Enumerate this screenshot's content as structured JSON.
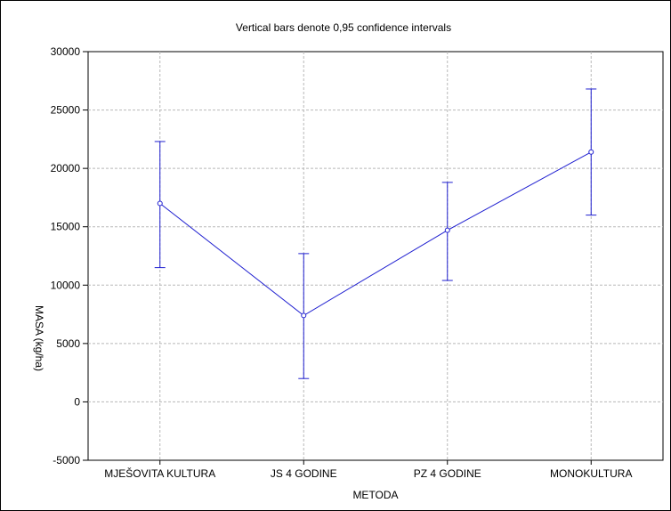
{
  "chart_data": {
    "type": "line",
    "title": "Vertical bars denote 0,95 confidence intervals",
    "xlabel": "METODA",
    "ylabel": "MASA (kg/ha)",
    "categories": [
      "MJEŠOVITA KULTURA",
      "JS 4 GODINE",
      "PZ 4 GODINE",
      "MONOKULTURA"
    ],
    "series": [
      {
        "values": [
          17000,
          7400,
          14700,
          21400
        ],
        "ci_low": [
          11500,
          2000,
          10400,
          16000
        ],
        "ci_high": [
          22300,
          12700,
          18800,
          26800
        ]
      }
    ],
    "ylim": [
      -5000,
      30000
    ],
    "yticks": [
      -5000,
      0,
      5000,
      10000,
      15000,
      20000,
      25000,
      30000
    ],
    "grid": true,
    "colors": {
      "series": "#1f1fd0",
      "grid": "#b8b8b8",
      "axis": "#000000"
    }
  }
}
